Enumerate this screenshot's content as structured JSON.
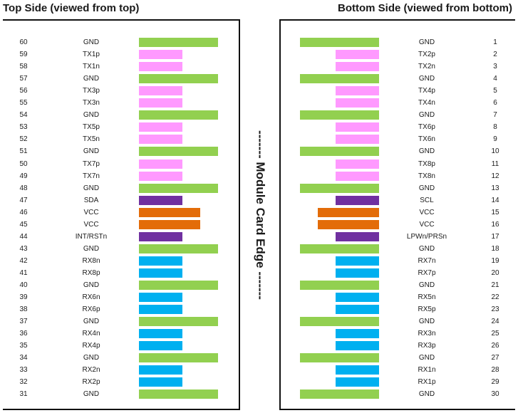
{
  "titles": {
    "top": "Top Side (viewed from top)",
    "bottom": "Bottom Side (viewed from bottom)"
  },
  "edge_label": "------- Module Card Edge -------",
  "colors": {
    "gnd": "#92d050",
    "tx": "#ff99ff",
    "ctrl": "#7030a0",
    "vcc": "#e36c09",
    "rx": "#00b0f0"
  },
  "top_pins": [
    {
      "num": "60",
      "signal": "GND",
      "type": "gnd"
    },
    {
      "num": "59",
      "signal": "TX1p",
      "type": "tx"
    },
    {
      "num": "58",
      "signal": "TX1n",
      "type": "tx"
    },
    {
      "num": "57",
      "signal": "GND",
      "type": "gnd"
    },
    {
      "num": "56",
      "signal": "TX3p",
      "type": "tx"
    },
    {
      "num": "55",
      "signal": "TX3n",
      "type": "tx"
    },
    {
      "num": "54",
      "signal": "GND",
      "type": "gnd"
    },
    {
      "num": "53",
      "signal": "TX5p",
      "type": "tx"
    },
    {
      "num": "52",
      "signal": "TX5n",
      "type": "tx"
    },
    {
      "num": "51",
      "signal": "GND",
      "type": "gnd"
    },
    {
      "num": "50",
      "signal": "TX7p",
      "type": "tx"
    },
    {
      "num": "49",
      "signal": "TX7n",
      "type": "tx"
    },
    {
      "num": "48",
      "signal": "GND",
      "type": "gnd"
    },
    {
      "num": "47",
      "signal": "SDA",
      "type": "ctrl"
    },
    {
      "num": "46",
      "signal": "VCC",
      "type": "vcc"
    },
    {
      "num": "45",
      "signal": "VCC",
      "type": "vcc"
    },
    {
      "num": "44",
      "signal": "INT/RSTn",
      "type": "ctrl"
    },
    {
      "num": "43",
      "signal": "GND",
      "type": "gnd"
    },
    {
      "num": "42",
      "signal": "RX8n",
      "type": "rx"
    },
    {
      "num": "41",
      "signal": "RX8p",
      "type": "rx"
    },
    {
      "num": "40",
      "signal": "GND",
      "type": "gnd"
    },
    {
      "num": "39",
      "signal": "RX6n",
      "type": "rx"
    },
    {
      "num": "38",
      "signal": "RX6p",
      "type": "rx"
    },
    {
      "num": "37",
      "signal": "GND",
      "type": "gnd"
    },
    {
      "num": "36",
      "signal": "RX4n",
      "type": "rx"
    },
    {
      "num": "35",
      "signal": "RX4p",
      "type": "rx"
    },
    {
      "num": "34",
      "signal": "GND",
      "type": "gnd"
    },
    {
      "num": "33",
      "signal": "RX2n",
      "type": "rx"
    },
    {
      "num": "32",
      "signal": "RX2p",
      "type": "rx"
    },
    {
      "num": "31",
      "signal": "GND",
      "type": "gnd"
    }
  ],
  "bottom_pins": [
    {
      "num": "1",
      "signal": "GND",
      "type": "gnd"
    },
    {
      "num": "2",
      "signal": "TX2p",
      "type": "tx"
    },
    {
      "num": "3",
      "signal": "TX2n",
      "type": "tx"
    },
    {
      "num": "4",
      "signal": "GND",
      "type": "gnd"
    },
    {
      "num": "5",
      "signal": "TX4p",
      "type": "tx"
    },
    {
      "num": "6",
      "signal": "TX4n",
      "type": "tx"
    },
    {
      "num": "7",
      "signal": "GND",
      "type": "gnd"
    },
    {
      "num": "8",
      "signal": "TX6p",
      "type": "tx"
    },
    {
      "num": "9",
      "signal": "TX6n",
      "type": "tx"
    },
    {
      "num": "10",
      "signal": "GND",
      "type": "gnd"
    },
    {
      "num": "11",
      "signal": "TX8p",
      "type": "tx"
    },
    {
      "num": "12",
      "signal": "TX8n",
      "type": "tx"
    },
    {
      "num": "13",
      "signal": "GND",
      "type": "gnd"
    },
    {
      "num": "14",
      "signal": "SCL",
      "type": "ctrl"
    },
    {
      "num": "15",
      "signal": "VCC",
      "type": "vcc"
    },
    {
      "num": "16",
      "signal": "VCC",
      "type": "vcc"
    },
    {
      "num": "17",
      "signal": "LPWn/PRSn",
      "type": "ctrl"
    },
    {
      "num": "18",
      "signal": "GND",
      "type": "gnd"
    },
    {
      "num": "19",
      "signal": "RX7n",
      "type": "rx"
    },
    {
      "num": "20",
      "signal": "RX7p",
      "type": "rx"
    },
    {
      "num": "21",
      "signal": "GND",
      "type": "gnd"
    },
    {
      "num": "22",
      "signal": "RX5n",
      "type": "rx"
    },
    {
      "num": "23",
      "signal": "RX5p",
      "type": "rx"
    },
    {
      "num": "24",
      "signal": "GND",
      "type": "gnd"
    },
    {
      "num": "25",
      "signal": "RX3n",
      "type": "rx"
    },
    {
      "num": "26",
      "signal": "RX3p",
      "type": "rx"
    },
    {
      "num": "27",
      "signal": "GND",
      "type": "gnd"
    },
    {
      "num": "28",
      "signal": "RX1n",
      "type": "rx"
    },
    {
      "num": "29",
      "signal": "RX1p",
      "type": "rx"
    },
    {
      "num": "30",
      "signal": "GND",
      "type": "gnd"
    }
  ]
}
